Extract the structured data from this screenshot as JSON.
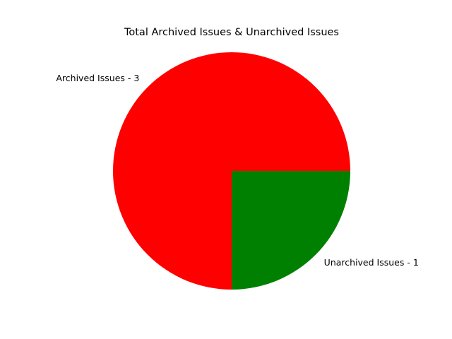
{
  "chart_data": {
    "type": "pie",
    "title": "Total Archived Issues & Unarchived Issues",
    "slices": [
      {
        "label": "Archived Issues - 3",
        "value": 3,
        "color": "#ff0000"
      },
      {
        "label": "Unarchived Issues - 1",
        "value": 1,
        "color": "#008000"
      }
    ],
    "start_angle_deg": 0,
    "direction": "counterclockwise",
    "legend": "none"
  }
}
